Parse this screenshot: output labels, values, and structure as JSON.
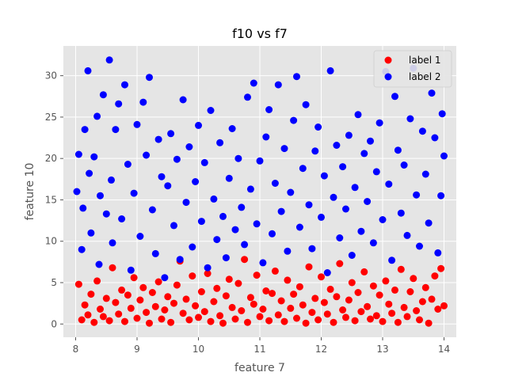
{
  "chart_data": {
    "type": "scatter",
    "title": "f10 vs f7",
    "xlabel": "feature 7",
    "ylabel": "feature 10",
    "xlim": [
      7.8,
      14.2
    ],
    "ylim": [
      -1.6,
      33.6
    ],
    "xticks": [
      8,
      9,
      10,
      11,
      12,
      13,
      14
    ],
    "xtick_labels": [
      "8",
      "9",
      "10",
      "11",
      "12",
      "13",
      "14"
    ],
    "yticks": [
      0,
      5,
      10,
      15,
      20,
      25,
      30
    ],
    "ytick_labels": [
      "0",
      "5",
      "10",
      "15",
      "20",
      "25",
      "30"
    ],
    "grid": true,
    "legend_position": "top-right",
    "background": "#e5e5e5",
    "series": [
      {
        "name": "label 1",
        "color": "#ff0000",
        "points": [
          [
            8.05,
            4.8
          ],
          [
            8.1,
            0.5
          ],
          [
            8.15,
            2.3
          ],
          [
            8.2,
            1.1
          ],
          [
            8.25,
            3.6
          ],
          [
            8.3,
            0.2
          ],
          [
            8.35,
            5.2
          ],
          [
            8.4,
            1.8
          ],
          [
            8.45,
            0.9
          ],
          [
            8.5,
            3.1
          ],
          [
            8.55,
            0.4
          ],
          [
            8.6,
            6.8
          ],
          [
            8.65,
            2.6
          ],
          [
            8.7,
            1.2
          ],
          [
            8.75,
            4.1
          ],
          [
            8.8,
            0.3
          ],
          [
            8.85,
            3.5
          ],
          [
            8.9,
            1.9
          ],
          [
            8.95,
            5.6
          ],
          [
            9.0,
            0.7
          ],
          [
            9.05,
            2.9
          ],
          [
            9.1,
            4.4
          ],
          [
            9.15,
            1.4
          ],
          [
            9.2,
            0.1
          ],
          [
            9.25,
            3.8
          ],
          [
            9.3,
            2.1
          ],
          [
            9.35,
            5.1
          ],
          [
            9.4,
            0.6
          ],
          [
            9.45,
            1.7
          ],
          [
            9.5,
            3.3
          ],
          [
            9.55,
            0.2
          ],
          [
            9.6,
            2.5
          ],
          [
            9.65,
            4.7
          ],
          [
            9.7,
            7.6
          ],
          [
            9.75,
            1.3
          ],
          [
            9.8,
            3.0
          ],
          [
            9.85,
            0.5
          ],
          [
            9.9,
            5.8
          ],
          [
            9.95,
            2.2
          ],
          [
            10.0,
            0.8
          ],
          [
            10.05,
            3.9
          ],
          [
            10.1,
            1.5
          ],
          [
            10.15,
            6.1
          ],
          [
            10.2,
            0.3
          ],
          [
            10.25,
            2.7
          ],
          [
            10.3,
            4.3
          ],
          [
            10.35,
            1.0
          ],
          [
            10.4,
            0.1
          ],
          [
            10.45,
            3.4
          ],
          [
            10.5,
            5.4
          ],
          [
            10.55,
            2.0
          ],
          [
            10.6,
            0.6
          ],
          [
            10.65,
            4.9
          ],
          [
            10.7,
            1.6
          ],
          [
            10.75,
            7.8
          ],
          [
            10.8,
            0.2
          ],
          [
            10.85,
            3.2
          ],
          [
            10.9,
            2.4
          ],
          [
            10.95,
            5.9
          ],
          [
            11.0,
            0.9
          ],
          [
            11.05,
            1.8
          ],
          [
            11.1,
            4.0
          ],
          [
            11.15,
            0.4
          ],
          [
            11.2,
            3.7
          ],
          [
            11.25,
            6.4
          ],
          [
            11.3,
            1.1
          ],
          [
            11.35,
            2.8
          ],
          [
            11.4,
            0.3
          ],
          [
            11.45,
            5.3
          ],
          [
            11.5,
            1.9
          ],
          [
            11.55,
            3.6
          ],
          [
            11.6,
            0.7
          ],
          [
            11.65,
            4.5
          ],
          [
            11.7,
            2.3
          ],
          [
            11.75,
            0.1
          ],
          [
            11.8,
            6.9
          ],
          [
            11.85,
            1.4
          ],
          [
            11.9,
            3.1
          ],
          [
            11.95,
            0.5
          ],
          [
            12.0,
            5.7
          ],
          [
            12.05,
            2.6
          ],
          [
            12.1,
            1.2
          ],
          [
            12.15,
            4.2
          ],
          [
            12.2,
            0.2
          ],
          [
            12.25,
            3.3
          ],
          [
            12.3,
            7.3
          ],
          [
            12.35,
            1.7
          ],
          [
            12.4,
            0.8
          ],
          [
            12.45,
            2.9
          ],
          [
            12.5,
            5.0
          ],
          [
            12.55,
            0.4
          ],
          [
            12.6,
            3.8
          ],
          [
            12.65,
            1.5
          ],
          [
            12.7,
            6.3
          ],
          [
            12.75,
            2.1
          ],
          [
            12.8,
            0.6
          ],
          [
            12.85,
            4.6
          ],
          [
            12.9,
            1.0
          ],
          [
            12.95,
            3.5
          ],
          [
            13.0,
            0.3
          ],
          [
            13.05,
            5.2
          ],
          [
            13.1,
            2.4
          ],
          [
            13.15,
            1.3
          ],
          [
            13.2,
            4.1
          ],
          [
            13.25,
            0.2
          ],
          [
            13.3,
            6.6
          ],
          [
            13.35,
            2.0
          ],
          [
            13.4,
            0.9
          ],
          [
            13.45,
            3.9
          ],
          [
            13.5,
            5.5
          ],
          [
            13.55,
            1.6
          ],
          [
            13.6,
            0.5
          ],
          [
            13.65,
            2.7
          ],
          [
            13.7,
            4.4
          ],
          [
            13.75,
            0.1
          ],
          [
            13.8,
            3.0
          ],
          [
            13.85,
            5.8
          ],
          [
            13.9,
            1.8
          ],
          [
            13.95,
            6.7
          ],
          [
            14.0,
            2.2
          ]
        ]
      },
      {
        "name": "label 2",
        "color": "#0000ff",
        "points": [
          [
            8.02,
            16.0
          ],
          [
            8.05,
            20.5
          ],
          [
            8.1,
            9.0
          ],
          [
            8.12,
            14.0
          ],
          [
            8.15,
            23.5
          ],
          [
            8.2,
            30.6
          ],
          [
            8.22,
            18.2
          ],
          [
            8.25,
            11.0
          ],
          [
            8.3,
            20.2
          ],
          [
            8.35,
            25.1
          ],
          [
            8.38,
            7.2
          ],
          [
            8.4,
            15.5
          ],
          [
            8.45,
            27.7
          ],
          [
            8.5,
            13.3
          ],
          [
            8.55,
            31.9
          ],
          [
            8.58,
            17.4
          ],
          [
            8.6,
            9.8
          ],
          [
            8.65,
            23.5
          ],
          [
            8.7,
            26.6
          ],
          [
            8.75,
            12.7
          ],
          [
            8.8,
            28.9
          ],
          [
            8.85,
            19.3
          ],
          [
            8.9,
            6.5
          ],
          [
            8.95,
            15.8
          ],
          [
            9.0,
            24.1
          ],
          [
            9.05,
            10.6
          ],
          [
            9.1,
            26.8
          ],
          [
            9.15,
            20.4
          ],
          [
            9.2,
            29.8
          ],
          [
            9.25,
            13.8
          ],
          [
            9.3,
            8.5
          ],
          [
            9.35,
            22.3
          ],
          [
            9.4,
            17.8
          ],
          [
            9.45,
            5.6
          ],
          [
            9.5,
            16.7
          ],
          [
            9.55,
            23.0
          ],
          [
            9.6,
            11.9
          ],
          [
            9.65,
            19.9
          ],
          [
            9.7,
            7.8
          ],
          [
            9.75,
            27.1
          ],
          [
            9.8,
            14.7
          ],
          [
            9.85,
            21.4
          ],
          [
            9.9,
            9.3
          ],
          [
            9.95,
            17.2
          ],
          [
            10.0,
            24.0
          ],
          [
            10.05,
            12.4
          ],
          [
            10.1,
            19.5
          ],
          [
            10.15,
            6.8
          ],
          [
            10.2,
            25.8
          ],
          [
            10.25,
            15.1
          ],
          [
            10.3,
            10.2
          ],
          [
            10.35,
            21.9
          ],
          [
            10.4,
            13.0
          ],
          [
            10.45,
            8.0
          ],
          [
            10.5,
            17.6
          ],
          [
            10.55,
            23.6
          ],
          [
            10.6,
            11.4
          ],
          [
            10.65,
            20.0
          ],
          [
            10.7,
            14.1
          ],
          [
            10.75,
            9.6
          ],
          [
            10.8,
            27.4
          ],
          [
            10.85,
            16.3
          ],
          [
            10.9,
            29.1
          ],
          [
            10.95,
            12.1
          ],
          [
            11.0,
            19.7
          ],
          [
            11.05,
            7.4
          ],
          [
            11.1,
            22.6
          ],
          [
            11.15,
            25.9
          ],
          [
            11.2,
            10.9
          ],
          [
            11.25,
            17.0
          ],
          [
            11.3,
            28.9
          ],
          [
            11.35,
            13.6
          ],
          [
            11.4,
            21.2
          ],
          [
            11.45,
            8.8
          ],
          [
            11.5,
            15.9
          ],
          [
            11.55,
            24.6
          ],
          [
            11.6,
            29.9
          ],
          [
            11.65,
            11.7
          ],
          [
            11.7,
            18.8
          ],
          [
            11.75,
            26.5
          ],
          [
            11.8,
            14.4
          ],
          [
            11.85,
            9.1
          ],
          [
            11.9,
            20.9
          ],
          [
            11.95,
            23.8
          ],
          [
            12.0,
            12.9
          ],
          [
            12.05,
            17.9
          ],
          [
            12.1,
            6.2
          ],
          [
            12.15,
            30.6
          ],
          [
            12.2,
            15.3
          ],
          [
            12.25,
            21.6
          ],
          [
            12.3,
            10.4
          ],
          [
            12.35,
            19.0
          ],
          [
            12.4,
            13.9
          ],
          [
            12.45,
            22.8
          ],
          [
            12.5,
            8.3
          ],
          [
            12.55,
            16.5
          ],
          [
            12.6,
            25.3
          ],
          [
            12.65,
            11.2
          ],
          [
            12.7,
            20.6
          ],
          [
            12.75,
            14.8
          ],
          [
            12.8,
            22.1
          ],
          [
            12.85,
            9.8
          ],
          [
            12.9,
            18.4
          ],
          [
            12.95,
            24.3
          ],
          [
            13.0,
            12.6
          ],
          [
            13.05,
            30.5
          ],
          [
            13.1,
            16.9
          ],
          [
            13.15,
            7.7
          ],
          [
            13.2,
            27.5
          ],
          [
            13.25,
            21.0
          ],
          [
            13.3,
            13.4
          ],
          [
            13.35,
            19.2
          ],
          [
            13.4,
            10.7
          ],
          [
            13.45,
            24.8
          ],
          [
            13.5,
            30.9
          ],
          [
            13.55,
            15.6
          ],
          [
            13.6,
            9.4
          ],
          [
            13.65,
            23.3
          ],
          [
            13.7,
            18.1
          ],
          [
            13.75,
            12.2
          ],
          [
            13.8,
            27.9
          ],
          [
            13.85,
            22.5
          ],
          [
            13.9,
            8.6
          ],
          [
            13.95,
            15.5
          ],
          [
            13.97,
            25.4
          ],
          [
            14.0,
            20.3
          ]
        ]
      }
    ]
  }
}
